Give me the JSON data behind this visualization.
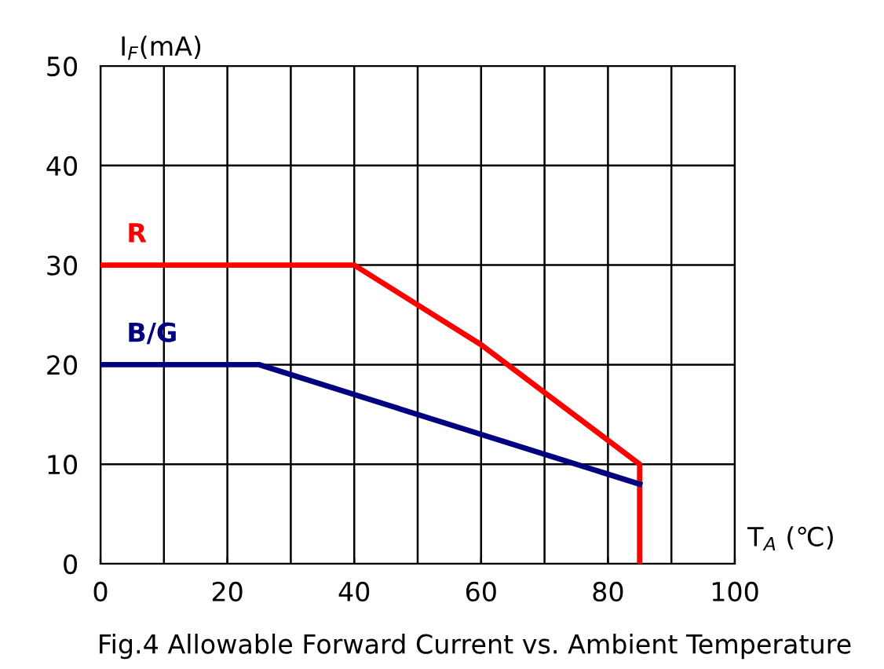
{
  "chart_data": {
    "type": "line",
    "title": "Fig.4 Allowable Forward Current vs. Ambient Temperature",
    "xlabel": "T$_{A}$ (℃)",
    "ylabel": "I$_{F}$(mA)",
    "series": [
      {
        "name": "R",
        "color": "#ff0000",
        "x": [
          0,
          40,
          60,
          85,
          85
        ],
        "values": [
          30,
          30,
          22,
          10,
          0
        ]
      },
      {
        "name": "B/G",
        "color": "#000080",
        "x": [
          0,
          25,
          85
        ],
        "values": [
          20,
          20,
          8
        ]
      }
    ],
    "xlim": [
      0,
      100
    ],
    "ylim": [
      0,
      50
    ],
    "xticks": [
      0,
      20,
      40,
      60,
      80,
      100
    ],
    "yticks": [
      0,
      10,
      20,
      30,
      40,
      50
    ],
    "grid": true,
    "legend": false,
    "marker": "none",
    "line_style": "solid"
  }
}
